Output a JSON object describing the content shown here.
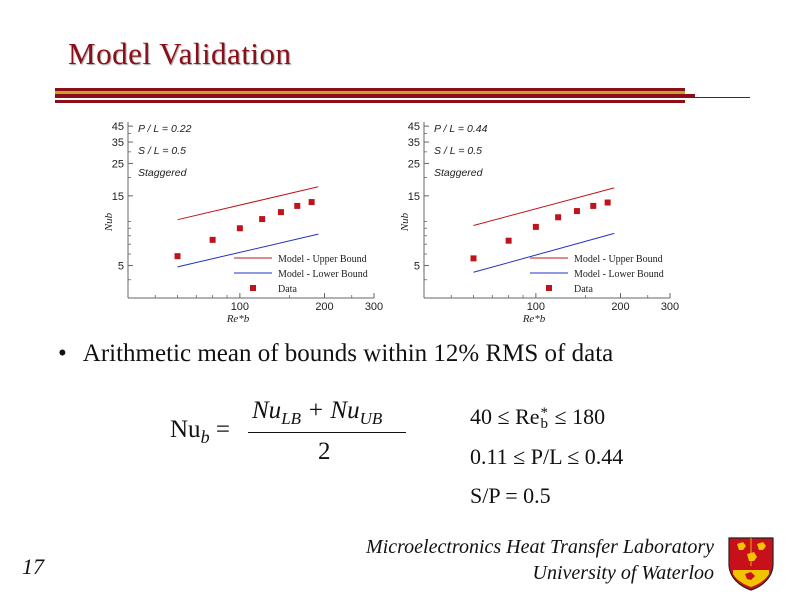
{
  "slide": {
    "title": "Model Validation",
    "bullet": "Arithmetic mean of bounds within 12% RMS of data",
    "equation": {
      "lhs": "Nu",
      "lhs_sub": "b",
      "equals": "=",
      "numerator": "Nu",
      "num_sub1": "LB",
      "plus": " + Nu",
      "num_sub2": "UB",
      "denominator": "2"
    },
    "conditions": {
      "c1_a": "40 ≤ Re",
      "c1_sup": "*",
      "c1_sub": "b",
      "c1_b": " ≤ 180",
      "c2": "0.11 ≤ P/L ≤ 0.44",
      "c3": "S/P = 0.5"
    },
    "footer": {
      "lab": "Microelectronics Heat Transfer Laboratory",
      "university": "University of Waterloo",
      "page": "17"
    },
    "colors": {
      "title": "#8a0f18",
      "upper": "#c0141c",
      "lower": "#2233c0",
      "data": "#c0141c",
      "crest_bg": "#c8101a",
      "crest_gold": "#f2c300"
    }
  },
  "chart_data": [
    {
      "type": "line",
      "log_x": true,
      "log_y": true,
      "xlabel": "Re*b",
      "ylabel": "Nub",
      "xticks": [
        100,
        200,
        300
      ],
      "yticks": [
        5,
        15,
        25,
        35,
        45
      ],
      "xlim": [
        40,
        300
      ],
      "ylim": [
        3,
        48
      ],
      "annotation": [
        "P / L = 0.22",
        "S / L = 0.5",
        "Staggered"
      ],
      "legend": [
        "Model - Upper Bound",
        "Model - Lower Bound",
        "Data"
      ],
      "legend_position": "bottom-right",
      "series": [
        {
          "name": "Model - Upper Bound",
          "x": [
            60,
            190
          ],
          "y": [
            10.3,
            17.3
          ]
        },
        {
          "name": "Model - Lower Bound",
          "x": [
            60,
            190
          ],
          "y": [
            4.9,
            8.2
          ]
        },
        {
          "name": "Data",
          "x": [
            60,
            80,
            100,
            120,
            140,
            160,
            180
          ],
          "y": [
            5.8,
            7.5,
            9.0,
            10.4,
            11.6,
            12.8,
            13.6
          ]
        }
      ]
    },
    {
      "type": "line",
      "log_x": true,
      "log_y": true,
      "xlabel": "Re*b",
      "ylabel": "Nub",
      "xticks": [
        100,
        200,
        300
      ],
      "yticks": [
        5,
        15,
        25,
        35,
        45
      ],
      "xlim": [
        40,
        300
      ],
      "ylim": [
        3,
        48
      ],
      "annotation": [
        "P / L = 0.44",
        "S / L = 0.5",
        "Staggered"
      ],
      "legend": [
        "Model - Upper Bound",
        "Model - Lower Bound",
        "Data"
      ],
      "legend_position": "bottom-right",
      "series": [
        {
          "name": "Model - Upper Bound",
          "x": [
            60,
            190
          ],
          "y": [
            9.4,
            17.0
          ]
        },
        {
          "name": "Model - Lower Bound",
          "x": [
            60,
            190
          ],
          "y": [
            4.5,
            8.3
          ]
        },
        {
          "name": "Data",
          "x": [
            60,
            80,
            100,
            120,
            140,
            160,
            180
          ],
          "y": [
            5.6,
            7.4,
            9.2,
            10.7,
            11.8,
            12.8,
            13.5
          ]
        }
      ]
    }
  ]
}
